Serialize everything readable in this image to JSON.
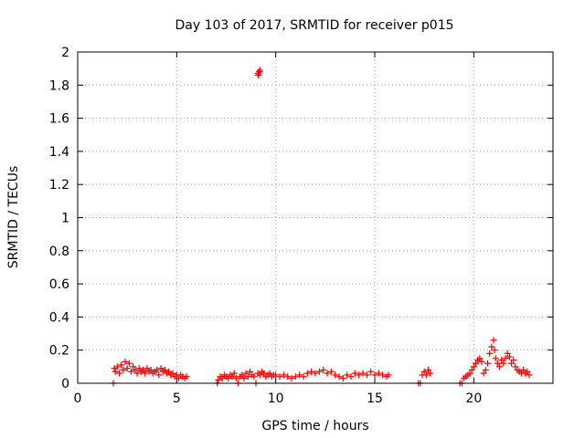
{
  "chart_data": {
    "type": "scatter",
    "title": "Day 103 of 2017, SRMTID for receiver p015",
    "xlabel": "GPS time / hours",
    "ylabel": "SRMTID / TECUs",
    "xlim": [
      0,
      24
    ],
    "ylim": [
      0,
      2
    ],
    "xticks": [
      0,
      5,
      10,
      15,
      20
    ],
    "yticks": [
      0,
      0.2,
      0.4,
      0.6,
      0.8,
      1,
      1.2,
      1.4,
      1.6,
      1.8,
      2
    ],
    "grid": true,
    "marker": "plus",
    "series": [
      {
        "name": "SRMTID",
        "color": "#ee0000",
        "points": [
          [
            1.8,
            0.0
          ],
          [
            1.85,
            0.09
          ],
          [
            1.9,
            0.07
          ],
          [
            2.0,
            0.1
          ],
          [
            2.1,
            0.06
          ],
          [
            2.2,
            0.11
          ],
          [
            2.3,
            0.08
          ],
          [
            2.4,
            0.13
          ],
          [
            2.5,
            0.09
          ],
          [
            2.6,
            0.12
          ],
          [
            2.7,
            0.07
          ],
          [
            2.8,
            0.1
          ],
          [
            2.9,
            0.08
          ],
          [
            3.0,
            0.06
          ],
          [
            3.1,
            0.09
          ],
          [
            3.2,
            0.07
          ],
          [
            3.3,
            0.08
          ],
          [
            3.4,
            0.06
          ],
          [
            3.5,
            0.09
          ],
          [
            3.6,
            0.07
          ],
          [
            3.7,
            0.08
          ],
          [
            3.8,
            0.06
          ],
          [
            3.9,
            0.07
          ],
          [
            4.0,
            0.08
          ],
          [
            4.1,
            0.05
          ],
          [
            4.2,
            0.09
          ],
          [
            4.3,
            0.07
          ],
          [
            4.4,
            0.08
          ],
          [
            4.5,
            0.06
          ],
          [
            4.6,
            0.07
          ],
          [
            4.7,
            0.05
          ],
          [
            4.8,
            0.06
          ],
          [
            4.9,
            0.04
          ],
          [
            5.0,
            0.05
          ],
          [
            5.1,
            0.03
          ],
          [
            5.2,
            0.05
          ],
          [
            5.3,
            0.04
          ],
          [
            5.4,
            0.03
          ],
          [
            5.5,
            0.04
          ],
          [
            7.05,
            0.0
          ],
          [
            7.1,
            0.02
          ],
          [
            7.2,
            0.04
          ],
          [
            7.3,
            0.03
          ],
          [
            7.4,
            0.05
          ],
          [
            7.5,
            0.04
          ],
          [
            7.6,
            0.03
          ],
          [
            7.7,
            0.05
          ],
          [
            7.8,
            0.04
          ],
          [
            7.9,
            0.06
          ],
          [
            8.0,
            0.03
          ],
          [
            8.1,
            0.0
          ],
          [
            8.2,
            0.04
          ],
          [
            8.3,
            0.05
          ],
          [
            8.4,
            0.03
          ],
          [
            8.5,
            0.06
          ],
          [
            8.6,
            0.04
          ],
          [
            8.7,
            0.07
          ],
          [
            8.8,
            0.05
          ],
          [
            8.9,
            0.04
          ],
          [
            9.0,
            0.0
          ],
          [
            9.1,
            0.06
          ],
          [
            9.2,
            0.05
          ],
          [
            9.3,
            0.07
          ],
          [
            9.4,
            0.06
          ],
          [
            9.5,
            0.04
          ],
          [
            9.6,
            0.05
          ],
          [
            9.7,
            0.06
          ],
          [
            9.8,
            0.04
          ],
          [
            9.9,
            0.05
          ],
          [
            9.1,
            1.87
          ],
          [
            9.15,
            1.88
          ],
          [
            9.2,
            1.89
          ],
          [
            9.12,
            1.86
          ],
          [
            9.18,
            1.88
          ],
          [
            10.0,
            0.05
          ],
          [
            10.2,
            0.04
          ],
          [
            10.4,
            0.05
          ],
          [
            10.6,
            0.04
          ],
          [
            10.8,
            0.03
          ],
          [
            11.0,
            0.04
          ],
          [
            11.2,
            0.05
          ],
          [
            11.4,
            0.04
          ],
          [
            11.6,
            0.06
          ],
          [
            11.8,
            0.07
          ],
          [
            12.0,
            0.06
          ],
          [
            12.2,
            0.07
          ],
          [
            12.4,
            0.08
          ],
          [
            12.6,
            0.06
          ],
          [
            12.8,
            0.07
          ],
          [
            13.0,
            0.05
          ],
          [
            13.2,
            0.04
          ],
          [
            13.4,
            0.03
          ],
          [
            13.6,
            0.05
          ],
          [
            13.8,
            0.04
          ],
          [
            14.0,
            0.06
          ],
          [
            14.2,
            0.05
          ],
          [
            14.4,
            0.06
          ],
          [
            14.6,
            0.05
          ],
          [
            14.8,
            0.07
          ],
          [
            15.0,
            0.05
          ],
          [
            15.2,
            0.06
          ],
          [
            15.4,
            0.05
          ],
          [
            15.6,
            0.04
          ],
          [
            15.7,
            0.05
          ],
          [
            17.2,
            0.0
          ],
          [
            17.3,
            0.0
          ],
          [
            17.4,
            0.05
          ],
          [
            17.5,
            0.07
          ],
          [
            17.6,
            0.05
          ],
          [
            17.7,
            0.08
          ],
          [
            17.8,
            0.06
          ],
          [
            19.3,
            0.0
          ],
          [
            19.4,
            0.0
          ],
          [
            19.5,
            0.03
          ],
          [
            19.6,
            0.04
          ],
          [
            19.7,
            0.05
          ],
          [
            19.8,
            0.06
          ],
          [
            19.9,
            0.08
          ],
          [
            20.0,
            0.1
          ],
          [
            20.1,
            0.12
          ],
          [
            20.2,
            0.14
          ],
          [
            20.3,
            0.15
          ],
          [
            20.4,
            0.13
          ],
          [
            20.5,
            0.06
          ],
          [
            20.6,
            0.08
          ],
          [
            20.7,
            0.12
          ],
          [
            20.8,
            0.18
          ],
          [
            20.9,
            0.22
          ],
          [
            21.0,
            0.26
          ],
          [
            21.05,
            0.2
          ],
          [
            21.1,
            0.15
          ],
          [
            21.2,
            0.12
          ],
          [
            21.3,
            0.1
          ],
          [
            21.4,
            0.14
          ],
          [
            21.5,
            0.12
          ],
          [
            21.6,
            0.15
          ],
          [
            21.7,
            0.18
          ],
          [
            21.8,
            0.16
          ],
          [
            21.9,
            0.12
          ],
          [
            22.0,
            0.14
          ],
          [
            22.1,
            0.1
          ],
          [
            22.2,
            0.08
          ],
          [
            22.3,
            0.07
          ],
          [
            22.4,
            0.06
          ],
          [
            22.5,
            0.08
          ],
          [
            22.6,
            0.06
          ],
          [
            22.7,
            0.07
          ],
          [
            22.8,
            0.05
          ]
        ]
      }
    ]
  }
}
